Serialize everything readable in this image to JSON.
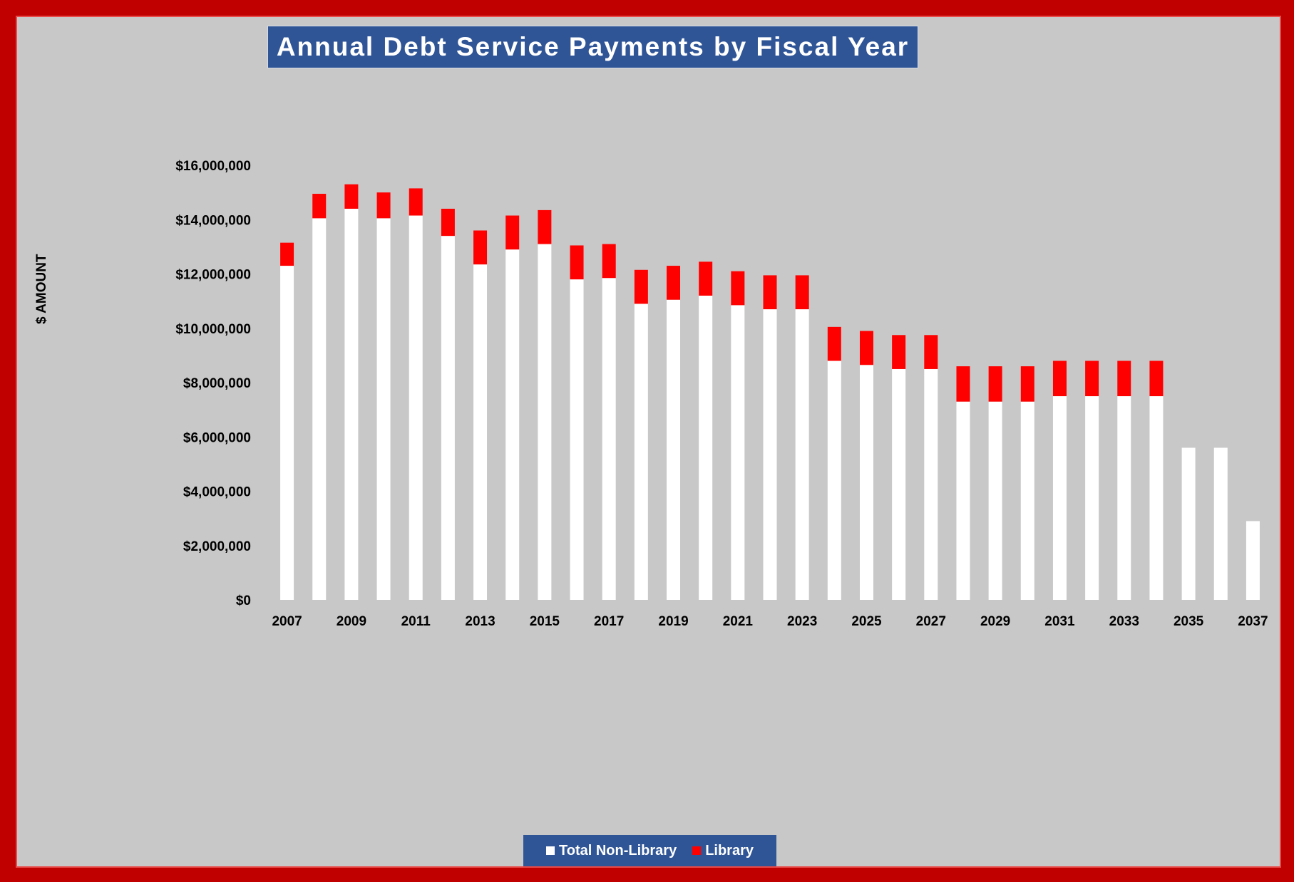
{
  "chart_data": {
    "type": "bar",
    "stacked": true,
    "title": "Annual Debt Service Payments by Fiscal Year",
    "ylabel": "$ AMOUNT",
    "xlabel": "",
    "ylim": [
      0,
      16000000
    ],
    "yticks": [
      0,
      2000000,
      4000000,
      6000000,
      8000000,
      10000000,
      12000000,
      14000000,
      16000000
    ],
    "ytick_labels": [
      "$0",
      "$2,000,000",
      "$4,000,000",
      "$6,000,000",
      "$8,000,000",
      "$10,000,000",
      "$12,000,000",
      "$14,000,000",
      "$16,000,000"
    ],
    "categories": [
      "2007",
      "2008",
      "2009",
      "2010",
      "2011",
      "2012",
      "2013",
      "2014",
      "2015",
      "2016",
      "2017",
      "2018",
      "2019",
      "2020",
      "2021",
      "2022",
      "2023",
      "2024",
      "2025",
      "2026",
      "2027",
      "2028",
      "2029",
      "2030",
      "2031",
      "2032",
      "2033",
      "2034",
      "2035",
      "2036",
      "2037"
    ],
    "xtick_labels_shown": [
      "2007",
      "2009",
      "2011",
      "2013",
      "2015",
      "2017",
      "2019",
      "2021",
      "2023",
      "2025",
      "2027",
      "2029",
      "2031",
      "2033",
      "2035",
      "2037"
    ],
    "series": [
      {
        "name": "Total Non-Library",
        "color": "#ffffff",
        "values": [
          12300000,
          14050000,
          14400000,
          14050000,
          14150000,
          13400000,
          12350000,
          12900000,
          13100000,
          11800000,
          11850000,
          10900000,
          11050000,
          11200000,
          10850000,
          10700000,
          10700000,
          8800000,
          8650000,
          8500000,
          8500000,
          7300000,
          7300000,
          7300000,
          7500000,
          7500000,
          7500000,
          7500000,
          5600000,
          5600000,
          2900000
        ]
      },
      {
        "name": "Library",
        "color": "#ff0000",
        "values": [
          850000,
          900000,
          900000,
          950000,
          1000000,
          1000000,
          1250000,
          1250000,
          1250000,
          1250000,
          1250000,
          1250000,
          1250000,
          1250000,
          1250000,
          1250000,
          1250000,
          1250000,
          1250000,
          1250000,
          1250000,
          1300000,
          1300000,
          1300000,
          1300000,
          1300000,
          1300000,
          1300000,
          0,
          0,
          0
        ]
      }
    ],
    "grid": false,
    "legend_position": "bottom"
  },
  "legend": [
    {
      "label": "Total Non-Library",
      "color": "#ffffff"
    },
    {
      "label": "Library",
      "color": "#ff0000"
    }
  ],
  "colors": {
    "frame": "#c00000",
    "panel": "#c8c8c8",
    "title_bg": "#2f5597"
  }
}
